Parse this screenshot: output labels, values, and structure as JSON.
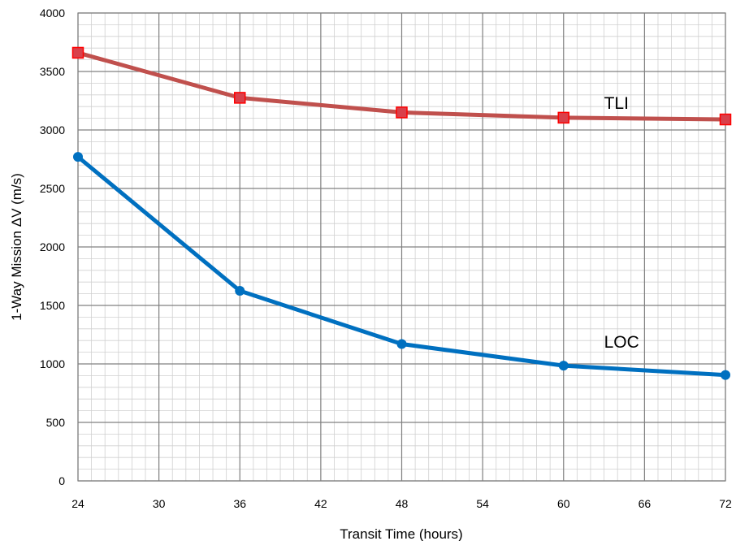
{
  "chart_data": {
    "type": "line",
    "xlabel": "Transit Time (hours)",
    "ylabel": "1-Way Mission ΔV (m/s)",
    "xlim": [
      24,
      72
    ],
    "ylim": [
      0,
      4000
    ],
    "x_ticks": [
      "24",
      "30",
      "36",
      "42",
      "48",
      "54",
      "60",
      "66",
      "72"
    ],
    "y_ticks": [
      "0",
      "500",
      "1000",
      "1500",
      "2000",
      "2500",
      "3000",
      "3500",
      "4000"
    ],
    "grid": true,
    "x": [
      24,
      36,
      48,
      60,
      72
    ],
    "series": [
      {
        "name": "TLI",
        "values": [
          3660,
          3275,
          3150,
          3105,
          3090
        ],
        "color": "#c0504d",
        "marker": "square",
        "marker_fill": "#d9404a",
        "marker_stroke": "#ff0000"
      },
      {
        "name": "LOC",
        "values": [
          2770,
          1625,
          1170,
          985,
          905
        ],
        "color": "#0070c0",
        "marker": "circle"
      }
    ],
    "annotations": [
      {
        "text": "TLI",
        "x": 63,
        "y": 3180
      },
      {
        "text": "LOC",
        "x": 63,
        "y": 1140
      }
    ],
    "colors": {
      "major_grid": "#808080",
      "minor_grid": "#d0d0d0",
      "background": "#ffffff"
    }
  }
}
